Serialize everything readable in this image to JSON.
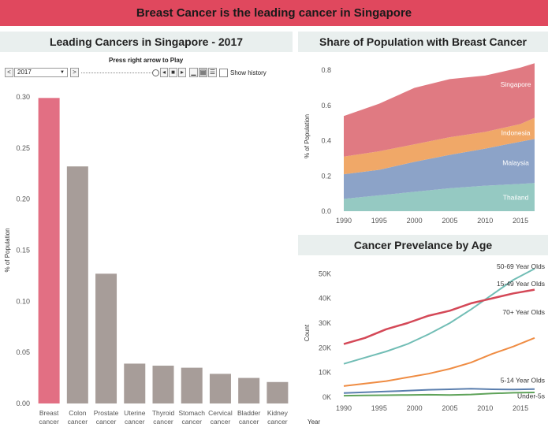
{
  "banner": {
    "title": "Breast Cancer is the leading cancer in Singapore"
  },
  "colors": {
    "banner": "#e0485e",
    "breast": "#e26f83",
    "other": "#a79d99",
    "singapore": "#e07a82",
    "indonesia": "#f0a868",
    "malaysia": "#8ca3c8",
    "thailand": "#95c9c2",
    "age_50_69": "#71bdb5",
    "age_15_49": "#d44857",
    "age_70": "#ef8c43",
    "age_5_14": "#5b7fae",
    "age_under5": "#5fa35a"
  },
  "controls": {
    "label": "Press right arrow to Play",
    "year": "2017",
    "prev": "<",
    "next": ">",
    "show_history": "Show history"
  },
  "chart_data": [
    {
      "type": "bar",
      "title": "Leading Cancers in Singapore - 2017",
      "ylabel": "% of Population",
      "xlabel": "",
      "ylim": [
        0,
        0.3
      ],
      "yticks": [
        "0.00",
        "0.05",
        "0.10",
        "0.15",
        "0.20",
        "0.25",
        "0.30"
      ],
      "categories": [
        [
          "Breast",
          "cancer"
        ],
        [
          "Colon",
          "cancer"
        ],
        [
          "Prostate",
          "cancer"
        ],
        [
          "Uterine",
          "cancer"
        ],
        [
          "Thyroid",
          "cancer"
        ],
        [
          "Stomach",
          "cancer"
        ],
        [
          "Cervical",
          "cancer"
        ],
        [
          "Bladder",
          "cancer"
        ],
        [
          "Kidney",
          "cancer"
        ]
      ],
      "values": [
        0.299,
        0.232,
        0.127,
        0.039,
        0.037,
        0.035,
        0.029,
        0.025,
        0.021
      ],
      "grid": false
    },
    {
      "type": "area",
      "title": "Share of Population with Breast Cancer",
      "ylabel": "% of Population",
      "xlabel": "",
      "ylim": [
        0,
        0.85
      ],
      "yticks": [
        "0.0",
        "0.2",
        "0.4",
        "0.6",
        "0.8"
      ],
      "xticks": [
        "1990",
        "1995",
        "2000",
        "2005",
        "2010",
        "2015"
      ],
      "x": [
        1990,
        1995,
        2000,
        2005,
        2010,
        2015,
        2017
      ],
      "stacked": true,
      "series": [
        {
          "name": "Thailand",
          "values": [
            0.07,
            0.09,
            0.11,
            0.13,
            0.145,
            0.155,
            0.16
          ]
        },
        {
          "name": "Malaysia",
          "values": [
            0.14,
            0.145,
            0.17,
            0.19,
            0.21,
            0.24,
            0.25
          ]
        },
        {
          "name": "Indonesia",
          "values": [
            0.1,
            0.105,
            0.1,
            0.1,
            0.095,
            0.1,
            0.12
          ]
        },
        {
          "name": "Singapore",
          "values": [
            0.23,
            0.27,
            0.32,
            0.33,
            0.32,
            0.32,
            0.31
          ]
        }
      ]
    },
    {
      "type": "line",
      "title": "Cancer Prevelance by Age",
      "ylabel": "Count",
      "xlabel": "Year",
      "ylim": [
        0,
        52000
      ],
      "yticks": [
        "0K",
        "10K",
        "20K",
        "30K",
        "40K",
        "50K"
      ],
      "xticks": [
        "1990",
        "1995",
        "2000",
        "2005",
        "2010",
        "2015"
      ],
      "x": [
        1990,
        1993,
        1996,
        1999,
        2002,
        2005,
        2008,
        2011,
        2014,
        2017
      ],
      "series": [
        {
          "name": "50-69 Year Olds",
          "values": [
            13500,
            16000,
            18500,
            21500,
            25500,
            30000,
            35500,
            41500,
            47500,
            52000
          ]
        },
        {
          "name": "15-49 Year Olds",
          "values": [
            21500,
            24000,
            27500,
            30000,
            33000,
            35000,
            38000,
            40000,
            42000,
            43500
          ]
        },
        {
          "name": "70+ Year Olds",
          "values": [
            4500,
            5500,
            6500,
            8000,
            9500,
            11500,
            14000,
            17500,
            20500,
            24000
          ]
        },
        {
          "name": "5-14 Year Olds",
          "values": [
            1700,
            2000,
            2300,
            2600,
            3000,
            3200,
            3400,
            3200,
            3100,
            3300
          ]
        },
        {
          "name": "Under-5s",
          "values": [
            600,
            700,
            800,
            900,
            1000,
            900,
            1100,
            1500,
            1800,
            1900
          ]
        }
      ]
    }
  ]
}
